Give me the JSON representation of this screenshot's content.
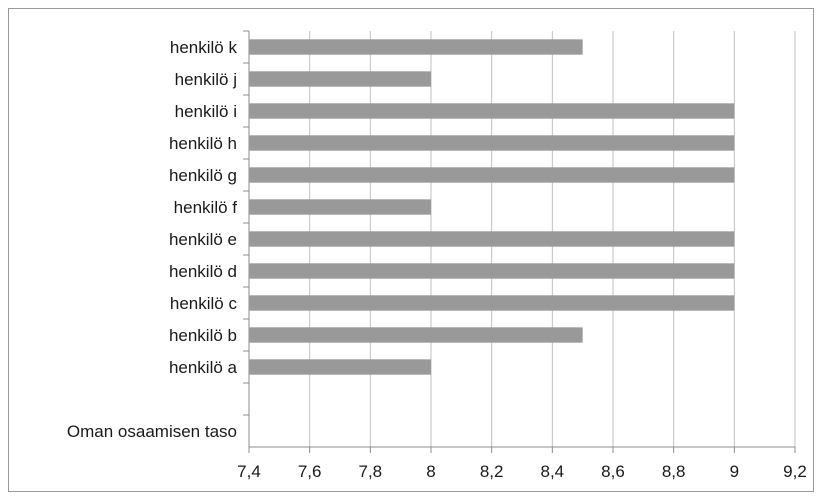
{
  "chart_data": {
    "type": "bar",
    "orientation": "horizontal",
    "categories": [
      "Oman osaamisen taso",
      "",
      "henkilö a",
      "henkilö b",
      "henkilö c",
      "henkilö d",
      "henkilö e",
      "henkilö f",
      "henkilö g",
      "henkilö h",
      "henkilö i",
      "henkilö j",
      "henkilö k"
    ],
    "values": [
      null,
      null,
      8,
      8.5,
      9,
      9,
      9,
      8,
      9,
      9,
      9,
      8,
      8.5
    ],
    "xlim": [
      7.4,
      9.2
    ],
    "xticks": [
      "7,4",
      "7,6",
      "7,8",
      "8",
      "8,2",
      "8,4",
      "8,6",
      "8,8",
      "9",
      "9,2"
    ],
    "title": "",
    "xlabel": "",
    "ylabel": "",
    "grid": "vertical",
    "legend": "none",
    "bar_color": "#999999",
    "grid_color": "#bfbfbf"
  }
}
